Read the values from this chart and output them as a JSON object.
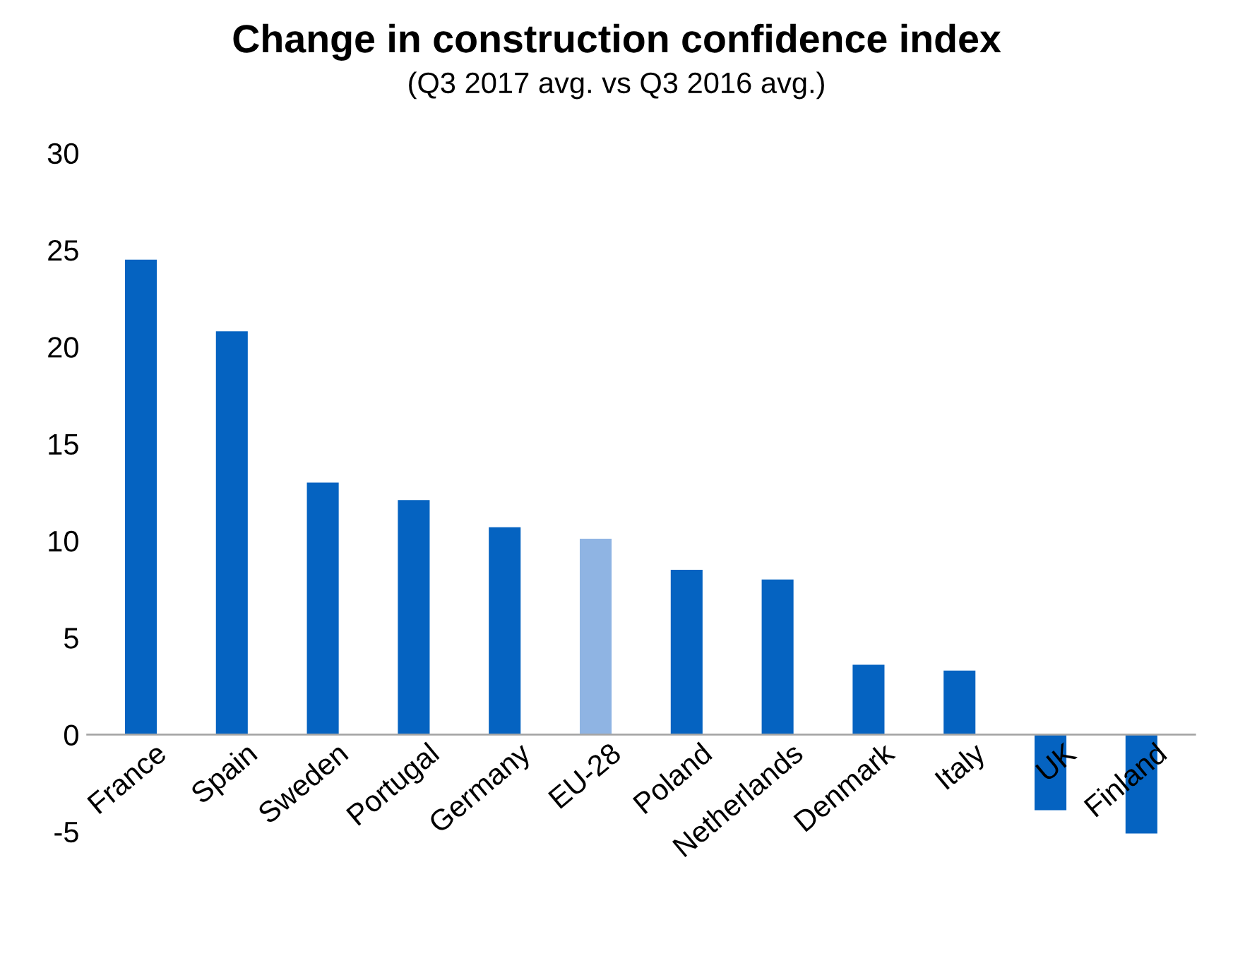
{
  "chart_data": {
    "type": "bar",
    "title": "Change in construction confidence index",
    "subtitle": "(Q3 2017 avg. vs Q3 2016 avg.)",
    "categories": [
      "France",
      "Spain",
      "Sweden",
      "Portugal",
      "Germany",
      "EU-28",
      "Poland",
      "Netherlands",
      "Denmark",
      "Italy",
      "UK",
      "Finland"
    ],
    "values": [
      24.5,
      20.8,
      13.0,
      12.1,
      10.7,
      10.1,
      8.5,
      8.0,
      3.6,
      3.3,
      -3.9,
      -5.1
    ],
    "colors": [
      "#0563c1",
      "#0563c1",
      "#0563c1",
      "#0563c1",
      "#0563c1",
      "#8fb4e3",
      "#0563c1",
      "#0563c1",
      "#0563c1",
      "#0563c1",
      "#0563c1",
      "#0563c1"
    ],
    "ylim": [
      -5.5,
      30
    ],
    "yticks": [
      -5,
      0,
      5,
      10,
      15,
      20,
      25,
      30
    ],
    "grid": false,
    "legend": false
  }
}
